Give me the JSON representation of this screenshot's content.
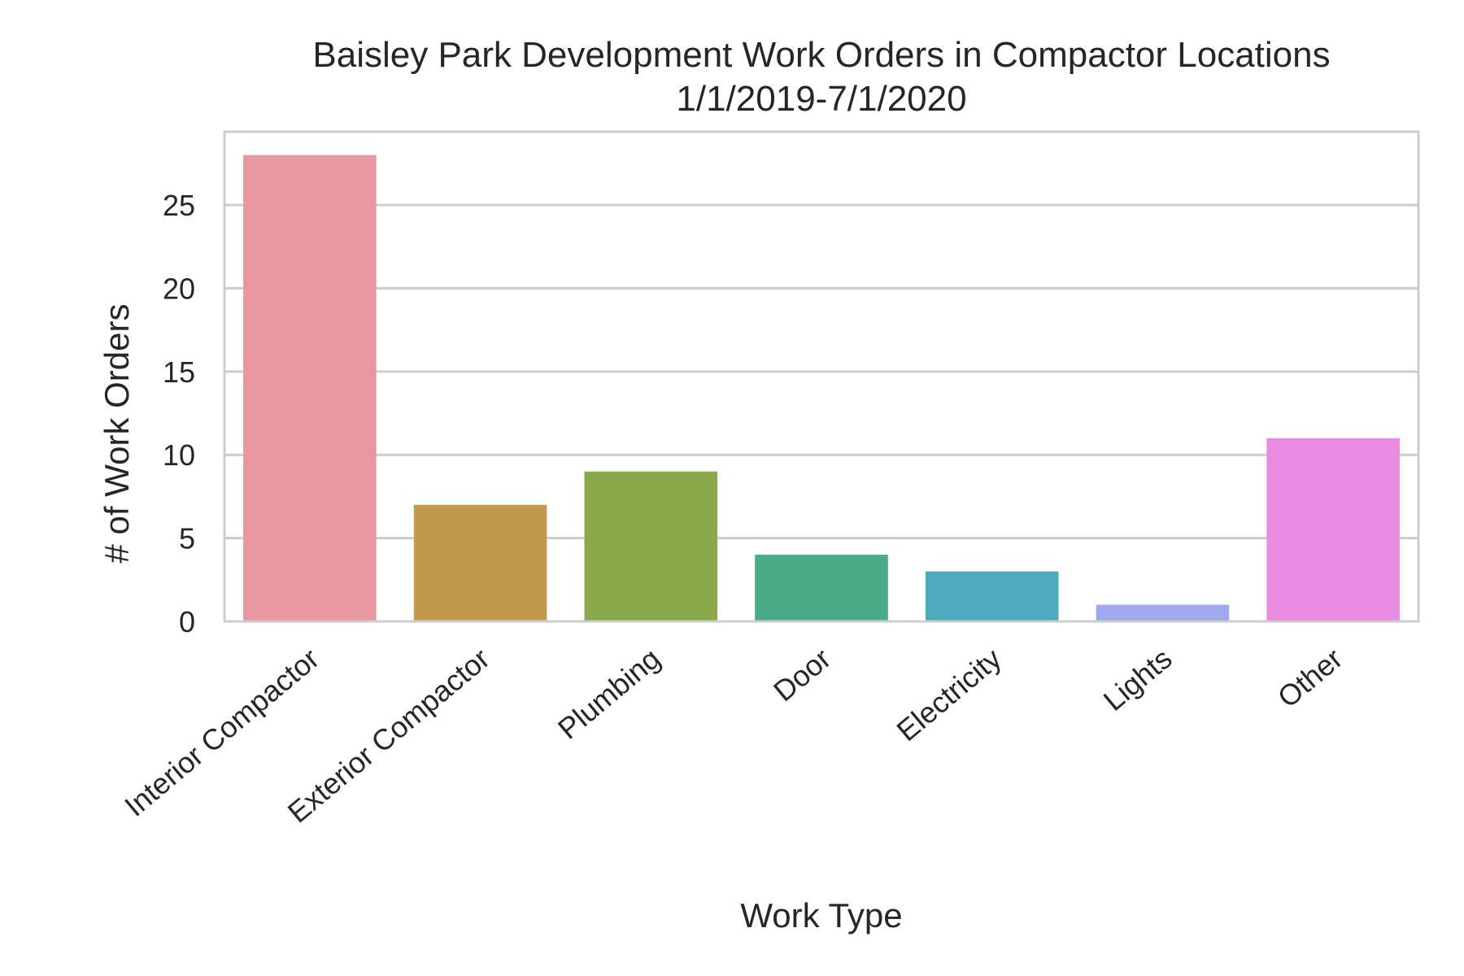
{
  "chart_data": {
    "type": "bar",
    "title": "Baisley Park Development Work Orders in Compactor Locations",
    "subtitle": "1/1/2019-7/1/2020",
    "xlabel": "Work Type",
    "ylabel": "# of Work Orders",
    "categories": [
      "Interior Compactor",
      "Exterior Compactor",
      "Plumbing",
      "Door",
      "Electricity",
      "Lights",
      "Other"
    ],
    "values": [
      28,
      7,
      9,
      4,
      3,
      1,
      11
    ],
    "colors": [
      "#e8969f",
      "#c29a4b",
      "#89a84a",
      "#4aab88",
      "#4eaabd",
      "#a0a9eb",
      "#e78ae0"
    ],
    "ylim": [
      0,
      29.4
    ],
    "yticks": [
      0,
      5,
      10,
      15,
      20,
      25
    ],
    "grid": "horizontal",
    "legend": "none",
    "style": {
      "grid_color": "#cccccc",
      "frame_color": "#cccccc",
      "text_color": "#262626"
    }
  }
}
